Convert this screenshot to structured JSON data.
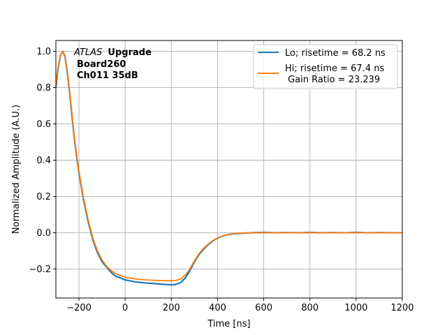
{
  "chart_data": {
    "type": "line",
    "xlabel": "Time [ns]",
    "ylabel": "Normalized Amplitude (A.U.)",
    "xlim": [
      -300,
      1200
    ],
    "ylim": [
      -0.36,
      1.06
    ],
    "xticks": [
      -200,
      0,
      200,
      400,
      600,
      800,
      1000,
      1200
    ],
    "xtick_labels": [
      "−200",
      "0",
      "200",
      "400",
      "600",
      "800",
      "1000",
      "1200"
    ],
    "yticks": [
      -0.2,
      0.0,
      0.2,
      0.4,
      0.6,
      0.8,
      1.0
    ],
    "ytick_labels": [
      "−0.2",
      "0.0",
      "0.2",
      "0.4",
      "0.6",
      "0.8",
      "1.0"
    ],
    "grid": true,
    "legend_position": "top-right",
    "annotation": {
      "italic": "ATLAS",
      "bold": "Upgrade",
      "line2": "Board260",
      "line3": "Ch011 35dB"
    },
    "series": [
      {
        "name": "Lo; risetime = 68.2 ns",
        "color": "#1f77b4",
        "x": [
          -300,
          -290,
          -280,
          -270,
          -260,
          -250,
          -240,
          -230,
          -220,
          -210,
          -200,
          -180,
          -160,
          -140,
          -120,
          -100,
          -80,
          -60,
          -40,
          -20,
          0,
          20,
          40,
          60,
          80,
          100,
          120,
          140,
          160,
          180,
          200,
          220,
          240,
          260,
          280,
          300,
          320,
          340,
          360,
          380,
          400,
          420,
          440,
          460,
          480,
          500,
          550,
          600,
          650,
          700,
          750,
          800,
          850,
          900,
          950,
          1000,
          1050,
          1100,
          1150,
          1200
        ],
        "y": [
          0.8,
          0.91,
          0.98,
          1.0,
          0.97,
          0.88,
          0.77,
          0.64,
          0.52,
          0.42,
          0.33,
          0.18,
          0.06,
          -0.04,
          -0.11,
          -0.16,
          -0.19,
          -0.22,
          -0.24,
          -0.25,
          -0.26,
          -0.265,
          -0.27,
          -0.273,
          -0.276,
          -0.278,
          -0.28,
          -0.282,
          -0.284,
          -0.286,
          -0.287,
          -0.285,
          -0.275,
          -0.25,
          -0.21,
          -0.16,
          -0.12,
          -0.09,
          -0.065,
          -0.045,
          -0.03,
          -0.02,
          -0.012,
          -0.008,
          -0.005,
          -0.003,
          0.0,
          0.002,
          0.0,
          0.001,
          0.0,
          0.002,
          0.0,
          0.001,
          0.0,
          0.002,
          0.0,
          0.001,
          0.0,
          0.0
        ]
      },
      {
        "name": "Hi; risetime = 67.4 ns\n Gain Ratio = 23.239",
        "color": "#ff7f0e",
        "x": [
          -300,
          -290,
          -280,
          -270,
          -260,
          -250,
          -240,
          -230,
          -220,
          -210,
          -200,
          -180,
          -160,
          -140,
          -120,
          -100,
          -80,
          -60,
          -40,
          -20,
          0,
          20,
          40,
          60,
          80,
          100,
          120,
          140,
          160,
          180,
          200,
          220,
          240,
          260,
          280,
          300,
          320,
          340,
          360,
          380,
          400,
          420,
          440,
          460,
          480,
          500,
          550,
          600,
          650,
          700,
          750,
          800,
          850,
          900,
          950,
          1000,
          1050,
          1100,
          1150,
          1200
        ],
        "y": [
          0.81,
          0.92,
          0.98,
          1.0,
          0.975,
          0.89,
          0.78,
          0.65,
          0.53,
          0.43,
          0.34,
          0.19,
          0.07,
          -0.03,
          -0.1,
          -0.15,
          -0.185,
          -0.21,
          -0.225,
          -0.237,
          -0.245,
          -0.25,
          -0.254,
          -0.257,
          -0.259,
          -0.261,
          -0.262,
          -0.263,
          -0.264,
          -0.265,
          -0.265,
          -0.263,
          -0.255,
          -0.235,
          -0.2,
          -0.155,
          -0.115,
          -0.085,
          -0.062,
          -0.043,
          -0.029,
          -0.019,
          -0.012,
          -0.007,
          -0.004,
          -0.002,
          -0.001,
          0.0,
          0.0,
          0.0,
          0.0,
          0.0,
          0.0,
          0.0,
          0.0,
          0.0,
          0.0,
          0.0,
          0.0,
          0.0
        ]
      }
    ]
  }
}
